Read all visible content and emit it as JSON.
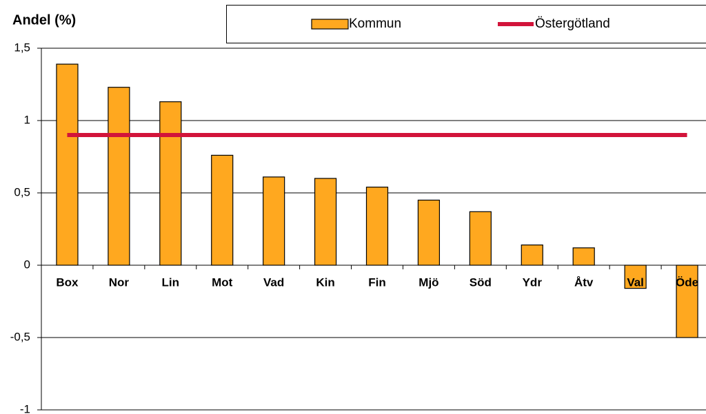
{
  "chart_data": {
    "type": "bar",
    "y_axis_label": "Andel (%)",
    "categories": [
      "Box",
      "Nor",
      "Lin",
      "Mot",
      "Vad",
      "Kin",
      "Fin",
      "Mjö",
      "Söd",
      "Ydr",
      "Åtv",
      "Val",
      "Öde"
    ],
    "series": [
      {
        "name": "Kommun",
        "type": "bar",
        "color": "#ffa81f",
        "values": [
          1.39,
          1.23,
          1.13,
          0.76,
          0.61,
          0.6,
          0.54,
          0.45,
          0.37,
          0.14,
          0.12,
          -0.16,
          -0.5
        ]
      },
      {
        "name": "Östergötland",
        "type": "line",
        "color": "#d2143a",
        "values": [
          0.9,
          0.9,
          0.9,
          0.9,
          0.9,
          0.9,
          0.9,
          0.9,
          0.9,
          0.9,
          0.9,
          0.9,
          0.9
        ]
      }
    ],
    "ylim": [
      -1,
      1.5
    ],
    "yticks": [
      -1,
      {
        "value": -0.5,
        "label": "-0,5"
      },
      0,
      {
        "value": 0.5,
        "label": "0,5"
      },
      1,
      {
        "value": 1.5,
        "label": "1,5"
      }
    ],
    "grid": true
  }
}
